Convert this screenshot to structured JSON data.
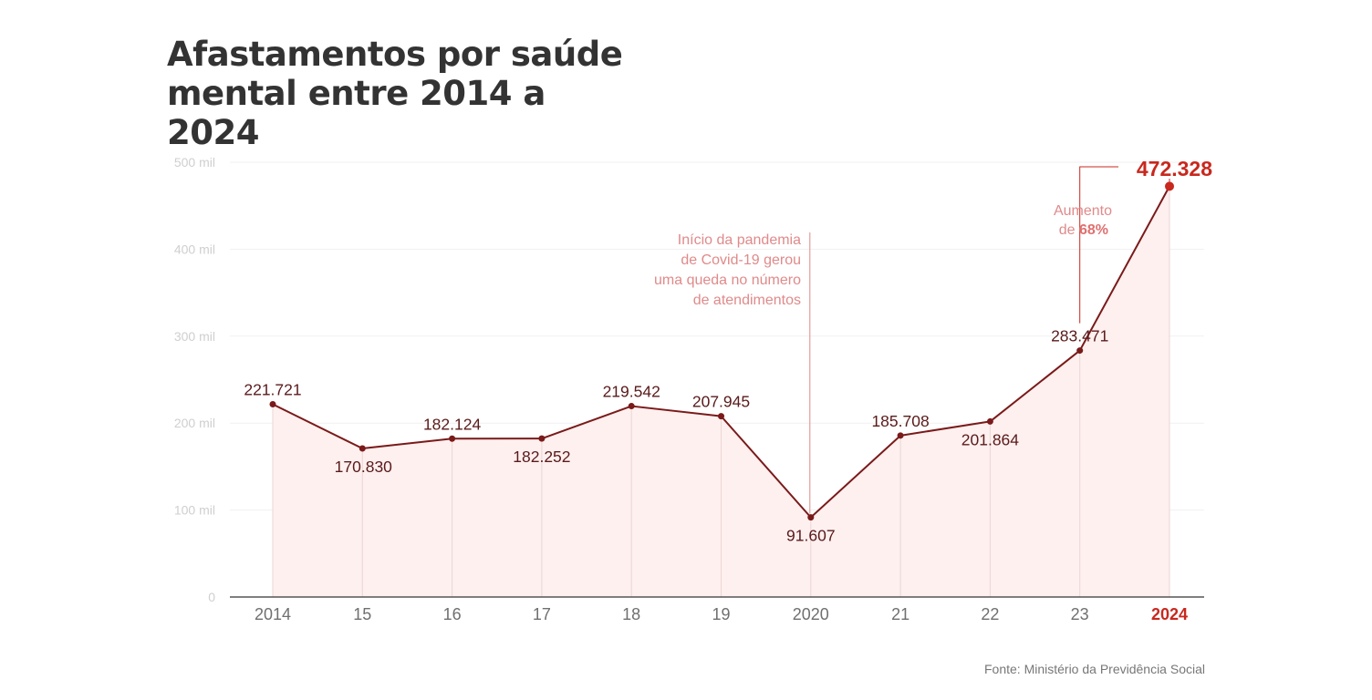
{
  "chart_data": {
    "type": "area",
    "title": "Afastamentos por saúde mental entre 2014 a 2024",
    "categories": [
      "2014",
      "15",
      "16",
      "17",
      "18",
      "19",
      "2020",
      "21",
      "22",
      "23",
      "2024"
    ],
    "values": [
      221721,
      170830,
      182124,
      182252,
      219542,
      207945,
      91607,
      185708,
      201864,
      283471,
      472328
    ],
    "data_labels": [
      "221.721",
      "170.830",
      "182.124",
      "182.252",
      "219.542",
      "207.945",
      "91.607",
      "185.708",
      "201.864",
      "283.471",
      "472.328"
    ],
    "y_ticks": [
      {
        "value": 0,
        "label": "0"
      },
      {
        "value": 100000,
        "label": "100 mil"
      },
      {
        "value": 200000,
        "label": "200 mil"
      },
      {
        "value": 300000,
        "label": "300 mil"
      },
      {
        "value": 400000,
        "label": "400 mil"
      },
      {
        "value": 500000,
        "label": "500 mil"
      }
    ],
    "ylim": [
      0,
      500000
    ],
    "grid": true,
    "xlabel": "",
    "ylabel": "",
    "annotations": {
      "pandemic": {
        "lines": [
          "Início da pandemia",
          "de Covid-19 gerou",
          "uma queda no número",
          "de atendimentos"
        ]
      },
      "increase": {
        "line1": "Aumento",
        "line2_prefix": "de ",
        "line2_value": "68%"
      }
    },
    "colors": {
      "line": "#7a1a1a",
      "fill": "#fdf0ef",
      "highlight": "#c8281e",
      "annotation": "#e08a8a"
    }
  },
  "source": "Fonte: Ministério da Previdência Social"
}
